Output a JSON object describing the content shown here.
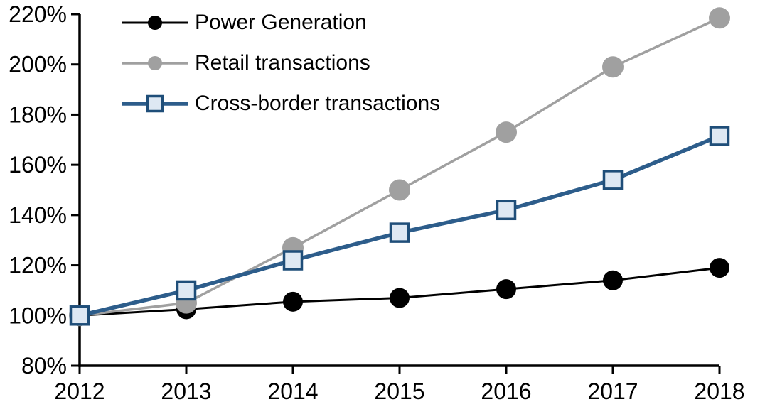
{
  "chart_data": {
    "type": "line",
    "title": "",
    "x_categories": [
      "2012",
      "2013",
      "2014",
      "2015",
      "2016",
      "2017",
      "2018"
    ],
    "series": [
      {
        "name": "Power Generation",
        "values": [
          100,
          102.5,
          105.5,
          107,
          110.5,
          114,
          119
        ],
        "line_color": "#000000",
        "line_width": 3,
        "marker": "circle",
        "marker_fill": "#000000",
        "marker_stroke": "#000000",
        "marker_stroke_width": 0,
        "marker_size": 14
      },
      {
        "name": "Retail transactions",
        "values": [
          100,
          105,
          127,
          150,
          173,
          199,
          218.5
        ],
        "line_color": "#A0A0A0",
        "line_width": 3.5,
        "marker": "circle",
        "marker_fill": "#A0A0A0",
        "marker_stroke": "#A0A0A0",
        "marker_stroke_width": 0,
        "marker_size": 15
      },
      {
        "name": "Cross-border transactions",
        "values": [
          100,
          110,
          122,
          133,
          142,
          154,
          171.5
        ],
        "line_color": "#2D5D8B",
        "line_width": 5.5,
        "marker": "square",
        "marker_fill": "#DEE8F3",
        "marker_stroke": "#1F4E79",
        "marker_stroke_width": 3.5,
        "marker_size": 12.5
      }
    ],
    "y_axis": {
      "min": 80,
      "max": 220,
      "step": 20,
      "tick_labels": [
        "80%",
        "100%",
        "120%",
        "140%",
        "160%",
        "180%",
        "200%",
        "220%"
      ],
      "format": "percent"
    },
    "x_axis": {
      "tick_labels": [
        "2012",
        "2013",
        "2014",
        "2015",
        "2016",
        "2017",
        "2018"
      ]
    },
    "legend_position": "top-left",
    "grid": false
  },
  "colors": {
    "background": "#FFFFFF",
    "axis": "#000000",
    "text": "#000000"
  }
}
